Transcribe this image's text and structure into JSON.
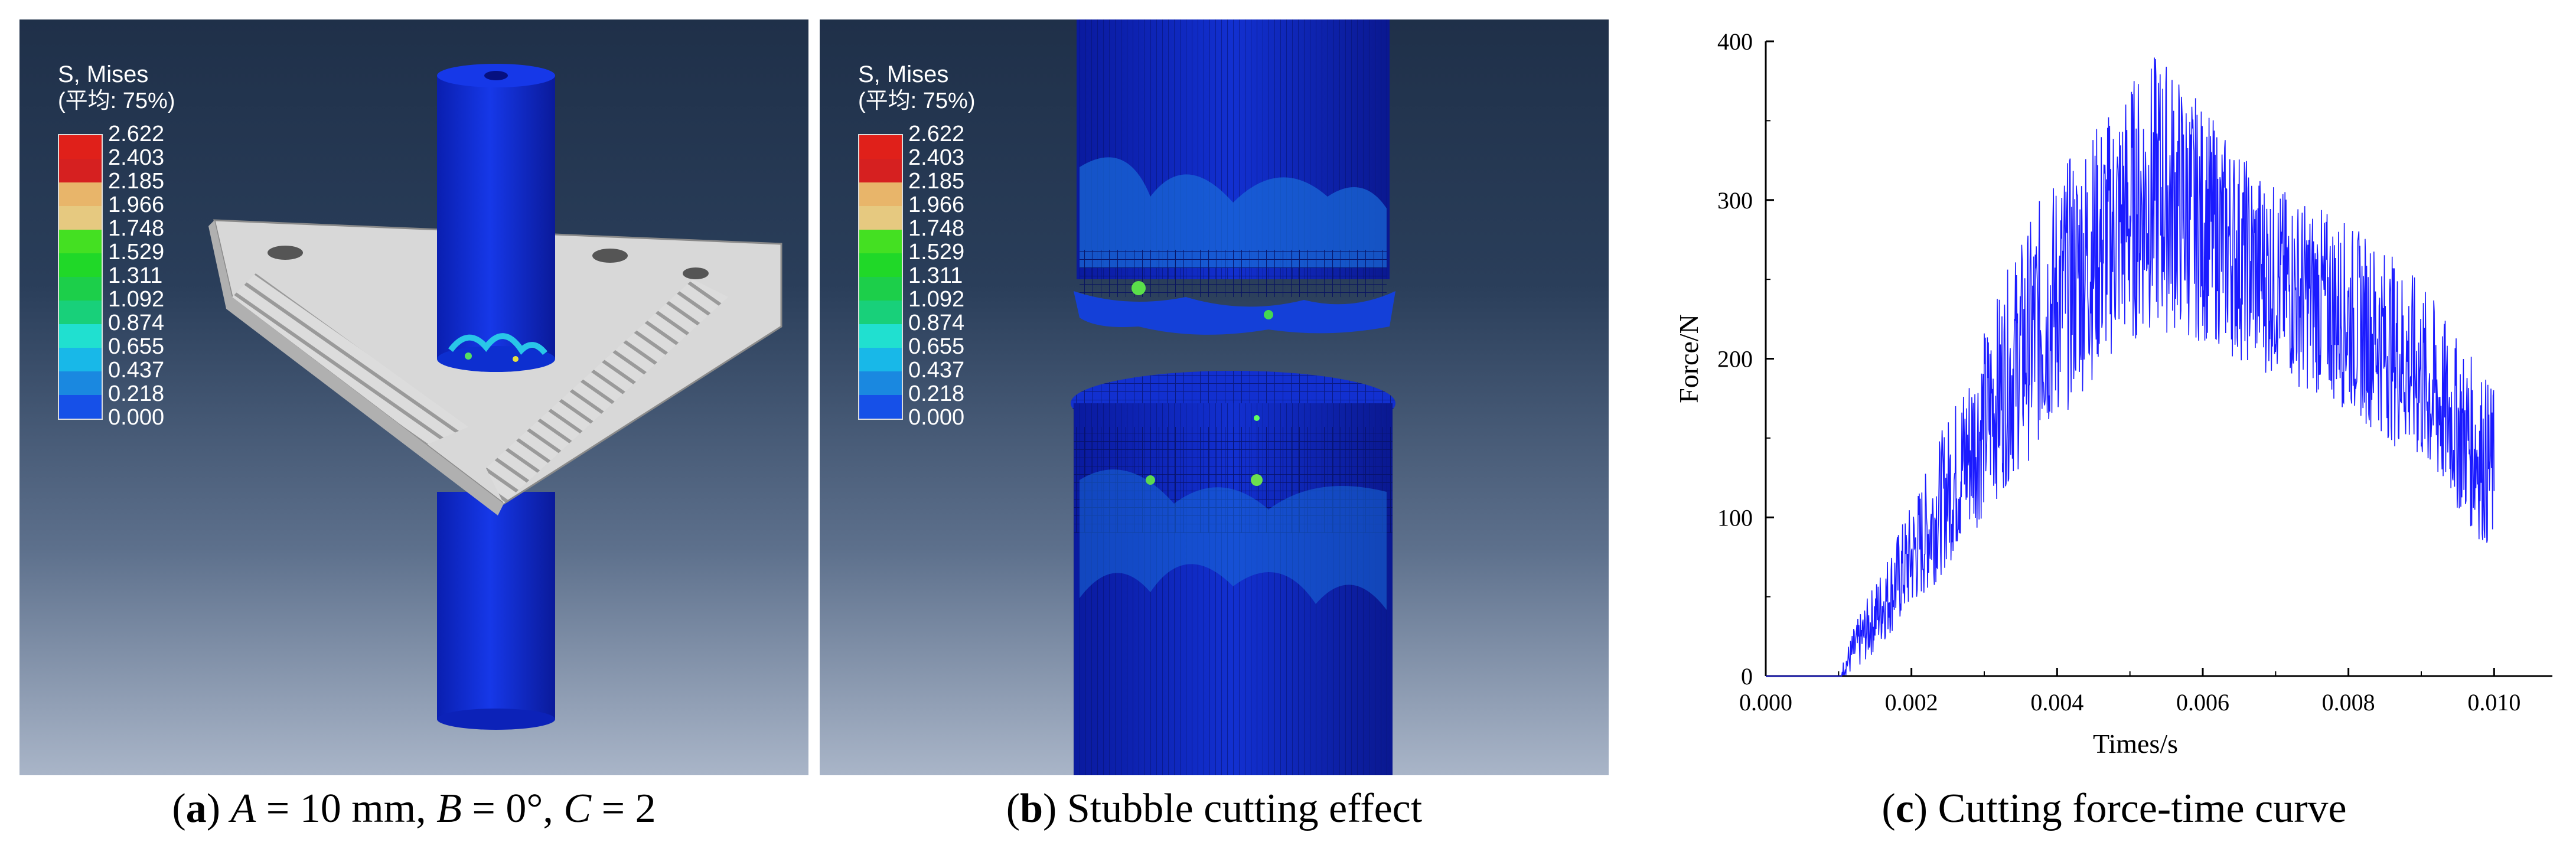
{
  "panel_a": {
    "legend_title": "S, Mises",
    "legend_subtitle": "(平均: 75%)",
    "legend_values": [
      "2.622",
      "2.403",
      "2.185",
      "1.966",
      "1.748",
      "1.529",
      "1.311",
      "1.092",
      "0.874",
      "0.655",
      "0.437",
      "0.218",
      "0.000"
    ],
    "legend_colors": [
      "#e0201a",
      "#d62020",
      "#e8b56a",
      "#e6c980",
      "#44e022",
      "#20d828",
      "#1ccf4a",
      "#18d07a",
      "#20e0d0",
      "#18b8e8",
      "#1a88e0",
      "#1650e8",
      "#1030e8"
    ],
    "caption_letter": "a",
    "caption_parts": {
      "a_var": "A",
      "a_val": " = 10 mm, ",
      "b_var": "B",
      "b_val": " = 0°, ",
      "c_var": "C",
      "c_val": " = 2"
    }
  },
  "panel_b": {
    "legend_title": "S, Mises",
    "legend_subtitle": "(平均: 75%)",
    "legend_values": [
      "2.622",
      "2.403",
      "2.185",
      "1.966",
      "1.748",
      "1.529",
      "1.311",
      "1.092",
      "0.874",
      "0.655",
      "0.437",
      "0.218",
      "0.000"
    ],
    "caption_letter": "b",
    "caption_text": " Stubble cutting effect"
  },
  "panel_c": {
    "caption_letter": "c",
    "caption_text": " Cutting force-time curve"
  },
  "chart_data": {
    "type": "line",
    "title": "",
    "xlabel": "Times/s",
    "ylabel": "Force/N",
    "xlim": [
      0,
      0.0108
    ],
    "ylim": [
      0,
      400
    ],
    "x_ticks": [
      0.0,
      0.002,
      0.004,
      0.006,
      0.008,
      0.01
    ],
    "x_tick_labels": [
      "0.000",
      "0.002",
      "0.004",
      "0.006",
      "0.008",
      "0.010"
    ],
    "y_ticks": [
      0,
      100,
      200,
      300,
      400
    ],
    "y_tick_labels": [
      "0",
      "100",
      "200",
      "300",
      "400"
    ],
    "line_color": "#1a1aff",
    "series": [
      {
        "name": "Cutting force",
        "x": [
          0.0,
          0.0005,
          0.001,
          0.0012,
          0.0014,
          0.0016,
          0.0018,
          0.002,
          0.0022,
          0.0024,
          0.0026,
          0.0028,
          0.003,
          0.0032,
          0.0034,
          0.0036,
          0.0038,
          0.004,
          0.0042,
          0.0044,
          0.0046,
          0.0048,
          0.005,
          0.0052,
          0.0054,
          0.0056,
          0.0058,
          0.006,
          0.0062,
          0.0064,
          0.0066,
          0.0068,
          0.007,
          0.0072,
          0.0074,
          0.0076,
          0.0078,
          0.008,
          0.0082,
          0.0084,
          0.0086,
          0.0088,
          0.009,
          0.0092,
          0.0094,
          0.0096,
          0.0098,
          0.01
        ],
        "values": [
          0,
          0,
          0,
          15,
          30,
          45,
          60,
          75,
          90,
          108,
          125,
          142,
          160,
          178,
          195,
          210,
          225,
          238,
          250,
          262,
          272,
          282,
          292,
          300,
          305,
          300,
          292,
          285,
          278,
          270,
          262,
          255,
          250,
          245,
          240,
          236,
          232,
          226,
          220,
          214,
          206,
          198,
          188,
          176,
          164,
          152,
          140,
          128
        ],
        "noise_amplitude": [
          0,
          0,
          0,
          15,
          20,
          25,
          30,
          35,
          40,
          45,
          50,
          55,
          60,
          65,
          70,
          75,
          80,
          80,
          80,
          80,
          80,
          80,
          85,
          85,
          90,
          85,
          80,
          75,
          70,
          70,
          65,
          65,
          60,
          60,
          60,
          60,
          60,
          60,
          60,
          60,
          60,
          60,
          60,
          60,
          55,
          55,
          55,
          55
        ]
      }
    ]
  }
}
